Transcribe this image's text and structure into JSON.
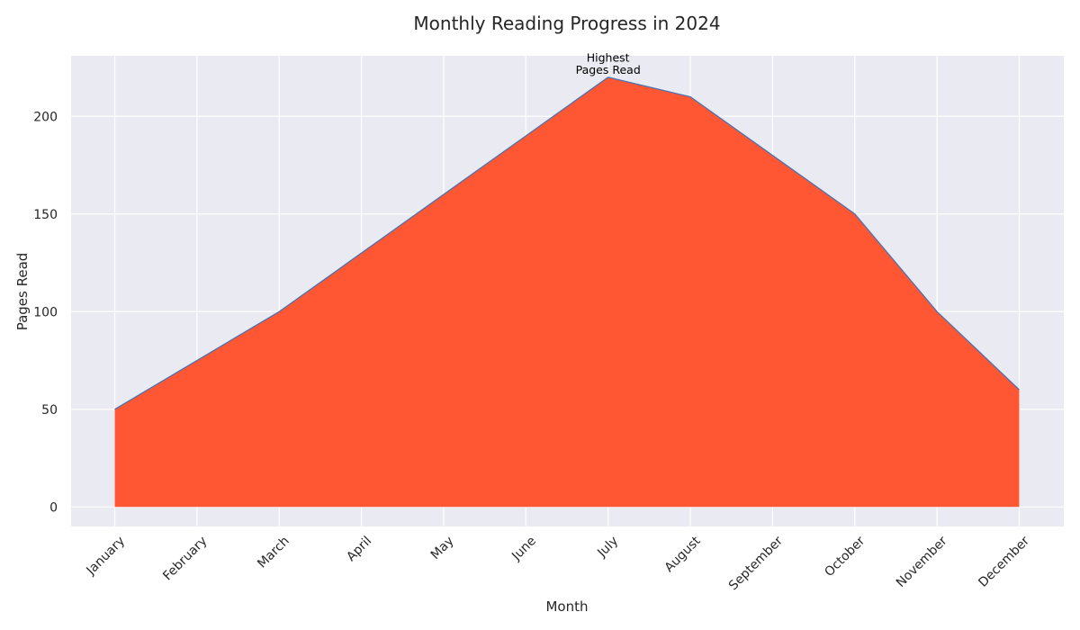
{
  "chart_data": {
    "type": "area",
    "title": "Monthly Reading Progress in 2024",
    "xlabel": "Month",
    "ylabel": "Pages Read",
    "categories": [
      "January",
      "February",
      "March",
      "April",
      "May",
      "June",
      "July",
      "August",
      "September",
      "October",
      "November",
      "December"
    ],
    "values": [
      50,
      75,
      100,
      130,
      160,
      190,
      220,
      210,
      180,
      150,
      100,
      60
    ],
    "ylim": [
      -10,
      231
    ],
    "yticks": [
      0,
      50,
      100,
      150,
      200
    ],
    "grid": true,
    "annotation": {
      "month": "July",
      "lines": [
        "Highest",
        "Pages Read"
      ]
    },
    "colors": {
      "fill": "#ff5733",
      "line": "#4c72b0",
      "background": "#eaeaf2",
      "grid": "#ffffff"
    }
  }
}
